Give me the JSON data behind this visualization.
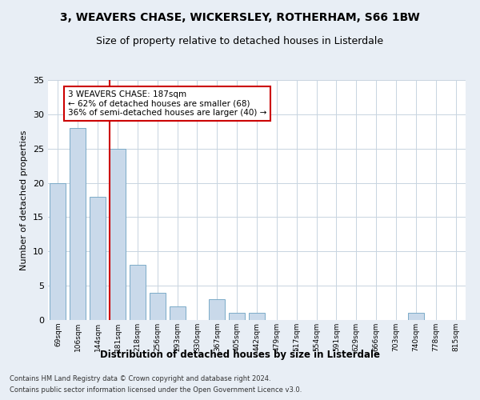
{
  "title": "3, WEAVERS CHASE, WICKERSLEY, ROTHERHAM, S66 1BW",
  "subtitle": "Size of property relative to detached houses in Listerdale",
  "xlabel_bottom": "Distribution of detached houses by size in Listerdale",
  "ylabel": "Number of detached properties",
  "footer1": "Contains HM Land Registry data © Crown copyright and database right 2024.",
  "footer2": "Contains public sector information licensed under the Open Government Licence v3.0.",
  "bin_labels": [
    "69sqm",
    "106sqm",
    "144sqm",
    "181sqm",
    "218sqm",
    "256sqm",
    "293sqm",
    "330sqm",
    "367sqm",
    "405sqm",
    "442sqm",
    "479sqm",
    "517sqm",
    "554sqm",
    "591sqm",
    "629sqm",
    "666sqm",
    "703sqm",
    "740sqm",
    "778sqm",
    "815sqm"
  ],
  "bar_values": [
    20,
    28,
    18,
    25,
    8,
    4,
    2,
    0,
    3,
    1,
    1,
    0,
    0,
    0,
    0,
    0,
    0,
    0,
    1,
    0,
    0
  ],
  "bar_color": "#c9d9ea",
  "bar_edge_color": "#7baac8",
  "vline_x_index": 3,
  "vline_color": "#cc0000",
  "annotation_line1": "3 WEAVERS CHASE: 187sqm",
  "annotation_line2": "← 62% of detached houses are smaller (68)",
  "annotation_line3": "36% of semi-detached houses are larger (40) →",
  "annotation_box_color": "white",
  "annotation_border_color": "#cc0000",
  "ylim": [
    0,
    35
  ],
  "yticks": [
    0,
    5,
    10,
    15,
    20,
    25,
    30,
    35
  ],
  "grid_color": "#c8d4e0",
  "background_color": "#e8eef5",
  "plot_background": "#ffffff",
  "bar_width": 0.8
}
